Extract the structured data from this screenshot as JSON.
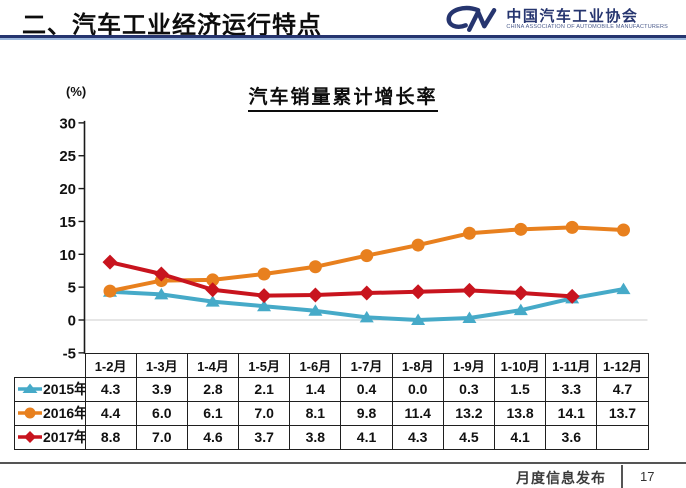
{
  "header": {
    "title": "二、汽车工业经济运行特点",
    "logo": {
      "mark_icon": "caam-cm-logo",
      "org_name_cn": "中国汽车工业协会",
      "org_name_en": "CHINA ASSOCIATION OF AUTOMOBILE MANUFACTURERS",
      "color": "#26356F"
    },
    "rule_dark_color": "#26356F",
    "rule_light_color": "#9CB8DC"
  },
  "chart_data": {
    "type": "line",
    "title": "汽车销量累计增长率",
    "unit_label": "(%)",
    "categories": [
      "1-2月",
      "1-3月",
      "1-4月",
      "1-5月",
      "1-6月",
      "1-7月",
      "1-8月",
      "1-9月",
      "1-10月",
      "1-11月",
      "1-12月"
    ],
    "y_ticks": [
      30,
      25,
      20,
      15,
      10,
      5,
      0,
      -5
    ],
    "ylim": [
      -5,
      30
    ],
    "grid": "zero-line-only",
    "zero_line_color": "#d8d8d8",
    "axis_color": "#1a1a1a",
    "legend_position": "table-left",
    "series": [
      {
        "name": "2015年",
        "marker": "triangle",
        "color": "#46AAC8",
        "values": [
          4.3,
          3.9,
          2.8,
          2.1,
          1.4,
          0.4,
          0.0,
          0.3,
          1.5,
          3.3,
          4.7
        ]
      },
      {
        "name": "2016年",
        "marker": "circle",
        "color": "#E8801E",
        "values": [
          4.4,
          6.0,
          6.1,
          7.0,
          8.1,
          9.8,
          11.4,
          13.2,
          13.8,
          14.1,
          13.7
        ]
      },
      {
        "name": "2017年",
        "marker": "diamond",
        "color": "#C8141E",
        "values": [
          8.8,
          7.0,
          4.6,
          3.7,
          3.8,
          4.1,
          4.3,
          4.5,
          4.1,
          3.6,
          null
        ]
      }
    ]
  },
  "footer": {
    "label": "月度信息发布",
    "page_number": "17"
  }
}
